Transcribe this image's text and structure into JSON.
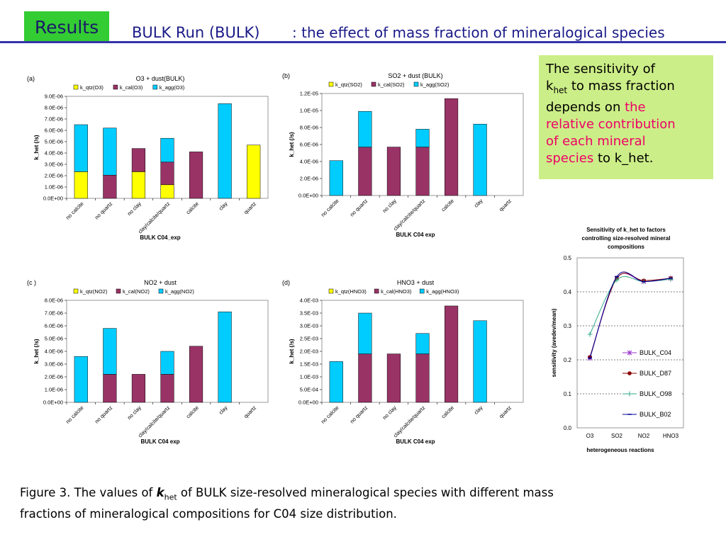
{
  "header": {
    "badge": "Results",
    "title_main": "BULK Run (BULK)",
    "title_sub": ": the effect of mass fraction of mineralogical species"
  },
  "note": {
    "line1": "The sensitivity of",
    "k": "k",
    "het": "het",
    "line2b": " to mass fraction",
    "line3": "depends on ",
    "hl1": "the",
    "hl2": "relative contribution",
    "hl3": "of each mineral",
    "hl4": "species",
    "line_end": " to k_het."
  },
  "caption": {
    "p1": "Figure 3. The values of ",
    "k": "k",
    "het": "het",
    "p2": " of BULK size-resolved mineralogical species with different mass fractions of mineralogical compositions for C04 size distribution."
  },
  "colors": {
    "qtz": "#ffff00",
    "cal": "#993366",
    "agg": "#00ccff",
    "C04": "#9933cc",
    "D87": "#880000",
    "O98": "#33aa88",
    "B02": "#000099"
  },
  "chart_data": [
    {
      "panel": "(a)",
      "type": "bar",
      "stacked": true,
      "title": "O3 + dust(BULK)",
      "xlabel": "BULK C04_exp",
      "ylabel": "k_het (/s)",
      "ylim": [
        0,
        9e-06
      ],
      "yticks": [
        "0.0E+00",
        "1.0E-06",
        "2.0E-06",
        "3.0E-06",
        "4.0E-06",
        "5.0E-06",
        "6.0E-06",
        "7.0E-06",
        "8.0E-06",
        "9.0E-06"
      ],
      "categories": [
        "no calcite",
        "no quartz",
        "no clay",
        "clay/calcite/quartz",
        "calcite",
        "clay",
        "quartz"
      ],
      "series": [
        {
          "name": "k_qtz(O3)",
          "color": "qtz",
          "values": [
            2.35e-06,
            0,
            2.35e-06,
            1.2e-06,
            0,
            0,
            4.7e-06
          ]
        },
        {
          "name": "k_cal(O3)",
          "color": "cal",
          "values": [
            0,
            2.05e-06,
            2.05e-06,
            2e-06,
            4.1e-06,
            0,
            0
          ]
        },
        {
          "name": "k_agg(O3)",
          "color": "agg",
          "values": [
            4.15e-06,
            4.15e-06,
            0,
            2.1e-06,
            0,
            8.35e-06,
            0
          ]
        }
      ]
    },
    {
      "panel": "(b)",
      "type": "bar",
      "stacked": true,
      "title": "SO2 + dust (BULK)",
      "xlabel": "BULK C04 exp",
      "ylabel": "k_het (/s)",
      "ylim": [
        0,
        1.2e-05
      ],
      "yticks": [
        "0.0E+00",
        "2.0E-06",
        "4.0E-06",
        "6.0E-06",
        "8.0E-06",
        "1.0E-05",
        "1.2E-05"
      ],
      "categories": [
        "no calcite",
        "no quartz",
        "no clay",
        "clay/calcite/quartz",
        "calcite",
        "clay",
        "quartz"
      ],
      "series": [
        {
          "name": "k_qtz(SO2)",
          "color": "qtz",
          "values": [
            0,
            0,
            0,
            0,
            0,
            0,
            0
          ]
        },
        {
          "name": "k_cal(SO2)",
          "color": "cal",
          "values": [
            0,
            5.7e-06,
            5.7e-06,
            5.7e-06,
            1.14e-05,
            0,
            0
          ]
        },
        {
          "name": "k_agg(SO2)",
          "color": "agg",
          "values": [
            4.1e-06,
            4.2e-06,
            0,
            2.1e-06,
            0,
            8.4e-06,
            0
          ]
        }
      ]
    },
    {
      "panel": "(c )",
      "type": "bar",
      "stacked": true,
      "title": "NO2 + dust",
      "xlabel": "BULK C04 exp",
      "ylabel": "k_het (/s)",
      "ylim": [
        0,
        8e-06
      ],
      "yticks": [
        "0.0E+00",
        "1.0E-06",
        "2.0E-06",
        "3.0E-06",
        "4.0E-06",
        "5.0E-06",
        "6.0E-06",
        "7.0E-06",
        "8.0E-06"
      ],
      "categories": [
        "no calcite",
        "no quartz",
        "no clay",
        "clay/calcite/quartz",
        "calcite",
        "clay",
        "quartz"
      ],
      "series": [
        {
          "name": "k_qtz(NO2)",
          "color": "qtz",
          "values": [
            0,
            0,
            0,
            0,
            0,
            0,
            0
          ]
        },
        {
          "name": "k_cal(NO2)",
          "color": "cal",
          "values": [
            0,
            2.2e-06,
            2.2e-06,
            2.2e-06,
            4.4e-06,
            0,
            0
          ]
        },
        {
          "name": "k_agg(NO2)",
          "color": "agg",
          "values": [
            3.6e-06,
            3.6e-06,
            0,
            1.8e-06,
            0,
            7.1e-06,
            0
          ]
        }
      ]
    },
    {
      "panel": "(d)",
      "type": "bar",
      "stacked": true,
      "title": "HNO3 + dust",
      "xlabel": "BULK C04 exp",
      "ylabel": "k_het (/s)",
      "ylim": [
        0,
        0.004
      ],
      "yticks": [
        "0.0E+00",
        "5.0E-04",
        "1.0E-03",
        "1.5E-03",
        "2.0E-03",
        "2.5E-03",
        "3.0E-03",
        "3.5E-03",
        "4.0E-03"
      ],
      "categories": [
        "no calcite",
        "no quartz",
        "no clay",
        "clay/calcite/quartz",
        "calcite",
        "clay",
        "quartz"
      ],
      "series": [
        {
          "name": "k_qtz(HNO3)",
          "color": "qtz",
          "values": [
            0,
            0,
            0,
            0,
            0,
            0,
            0
          ]
        },
        {
          "name": "k_cal(HNO3)",
          "color": "cal",
          "values": [
            0,
            0.0019,
            0.0019,
            0.0019,
            0.00378,
            0,
            0
          ]
        },
        {
          "name": "k_agg(HNO3)",
          "color": "agg",
          "values": [
            0.0016,
            0.0016,
            0,
            0.0008,
            0,
            0.0032,
            0
          ]
        }
      ]
    },
    {
      "type": "line",
      "title": "Sensitivity of k_het to factors controlling size-resolved mineral compositions",
      "title_lines": [
        "Sensitivity of k_het to factors",
        "controlling size-resolved mineral",
        "compositions"
      ],
      "xlabel": "heterogeneous reactions",
      "ylabel": "sensitivity (avedev/mean)",
      "ylim": [
        0,
        0.5
      ],
      "yticks": [
        "0.0",
        "0.1",
        "0.2",
        "0.3",
        "0.4",
        "0.5"
      ],
      "yticks_values": [
        0,
        0.1,
        0.2,
        0.3,
        0.4,
        0.5
      ],
      "grid": true,
      "legend": "right",
      "categories": [
        "O3",
        "SO2",
        "NO2",
        "HNO3"
      ],
      "series": [
        {
          "name": "BULK_C04",
          "color": "C04",
          "marker": "asterisk",
          "values": [
            0.205,
            0.44,
            0.43,
            0.44
          ]
        },
        {
          "name": "BULK_D87",
          "color": "D87",
          "marker": "circle",
          "values": [
            0.208,
            0.44,
            0.433,
            0.44
          ]
        },
        {
          "name": "BULK_O98",
          "color": "O98",
          "marker": "plus",
          "values": [
            0.275,
            0.435,
            0.43,
            0.437
          ]
        },
        {
          "name": "BULK_B02",
          "color": "B02",
          "marker": "dash",
          "values": [
            0.205,
            0.445,
            0.43,
            0.44
          ]
        }
      ]
    }
  ]
}
